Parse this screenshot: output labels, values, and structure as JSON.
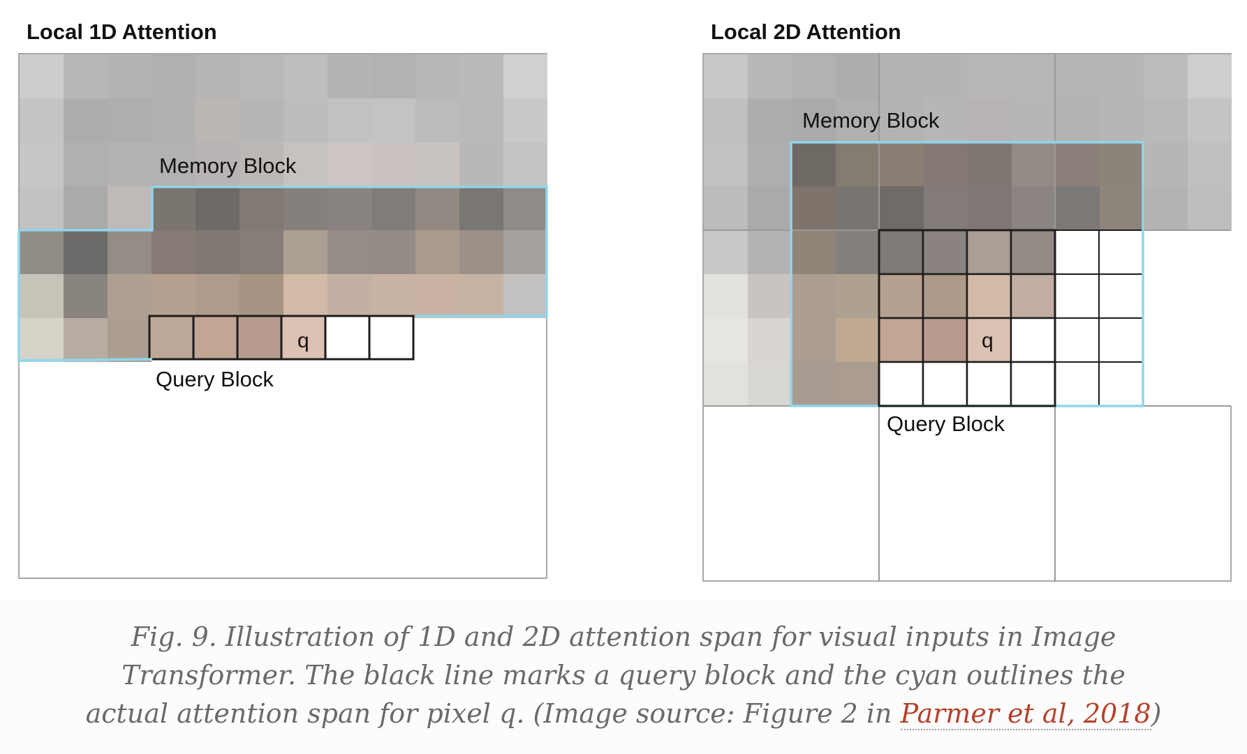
{
  "panels": [
    {
      "title": "Local 1D Attention",
      "memory_label": "Memory Block",
      "query_label": "Query Block",
      "query_pixel_label": "q"
    },
    {
      "title": "Local 2D Attention",
      "memory_label": "Memory Block",
      "query_label": "Query Block",
      "query_pixel_label": "q"
    }
  ],
  "colors": {
    "memory_outline": "#8fd6ec",
    "query_outline": "#1c1c1c",
    "block_grid": "#9a9a9a"
  },
  "caption": {
    "text": "Fig. 9. Illustration of 1D and 2D attention span for visual inputs in Image Transformer. The black line marks a query block and the cyan outlines the actual attention span for pixel q. (Image source: Figure 2 in ",
    "link_text": "Parmer et al, 2018",
    "suffix": ")"
  }
}
